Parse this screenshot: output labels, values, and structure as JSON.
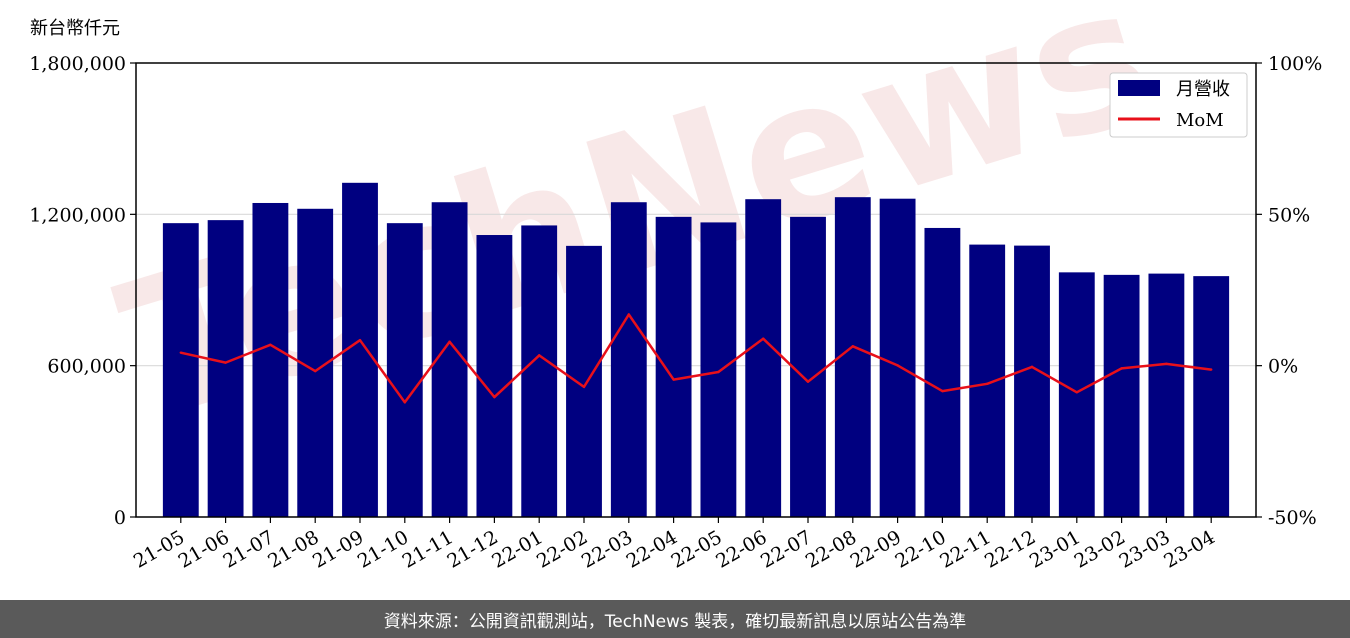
{
  "unit_label": "新台幣仟元",
  "footer_text": "資料來源：公開資訊觀測站，TechNews 製表，確切最新訊息以原站公告為準",
  "watermark_text": "TechNews",
  "colors": {
    "bar": "#000080",
    "line": "#e8101a",
    "grid": "#d9d9d9",
    "watermark": "#f3d6d6"
  },
  "chart_data": {
    "type": "bar",
    "categories": [
      "21-05",
      "21-06",
      "21-07",
      "21-08",
      "21-09",
      "21-10",
      "21-11",
      "21-12",
      "22-01",
      "22-02",
      "22-03",
      "22-04",
      "22-05",
      "22-06",
      "22-07",
      "22-08",
      "22-09",
      "22-10",
      "22-11",
      "22-12",
      "23-01",
      "23-02",
      "23-03",
      "23-04"
    ],
    "series": [
      {
        "name": "月營收",
        "axis": "left",
        "kind": "bar",
        "values": [
          1165000,
          1177000,
          1245000,
          1222000,
          1325000,
          1165000,
          1248000,
          1118000,
          1156000,
          1075000,
          1248000,
          1190000,
          1168000,
          1260000,
          1190000,
          1268000,
          1262000,
          1146000,
          1080000,
          1076000,
          970000,
          960000,
          965000,
          955000
        ]
      },
      {
        "name": "MoM",
        "axis": "right",
        "kind": "line",
        "values": [
          4.3,
          1.0,
          6.9,
          -1.8,
          8.4,
          -12.1,
          7.9,
          -10.4,
          3.4,
          -7.0,
          16.9,
          -4.6,
          -2.1,
          8.9,
          -5.3,
          6.4,
          0.1,
          -8.4,
          -6.0,
          -0.4,
          -8.8,
          -0.9,
          0.6,
          -1.3
        ]
      }
    ],
    "y_left": {
      "lim": [
        0,
        1800000
      ],
      "ticks": [
        0,
        600000,
        1200000,
        1800000
      ],
      "tick_labels": [
        "0",
        "600,000",
        "1,200,000",
        "1,800,000"
      ]
    },
    "y_right": {
      "lim": [
        -50,
        100
      ],
      "ticks": [
        -50,
        0,
        50,
        100
      ],
      "tick_labels": [
        "-50%",
        "0%",
        "50%",
        "100%"
      ]
    },
    "grid": "horizontal",
    "legend": "top-right"
  }
}
